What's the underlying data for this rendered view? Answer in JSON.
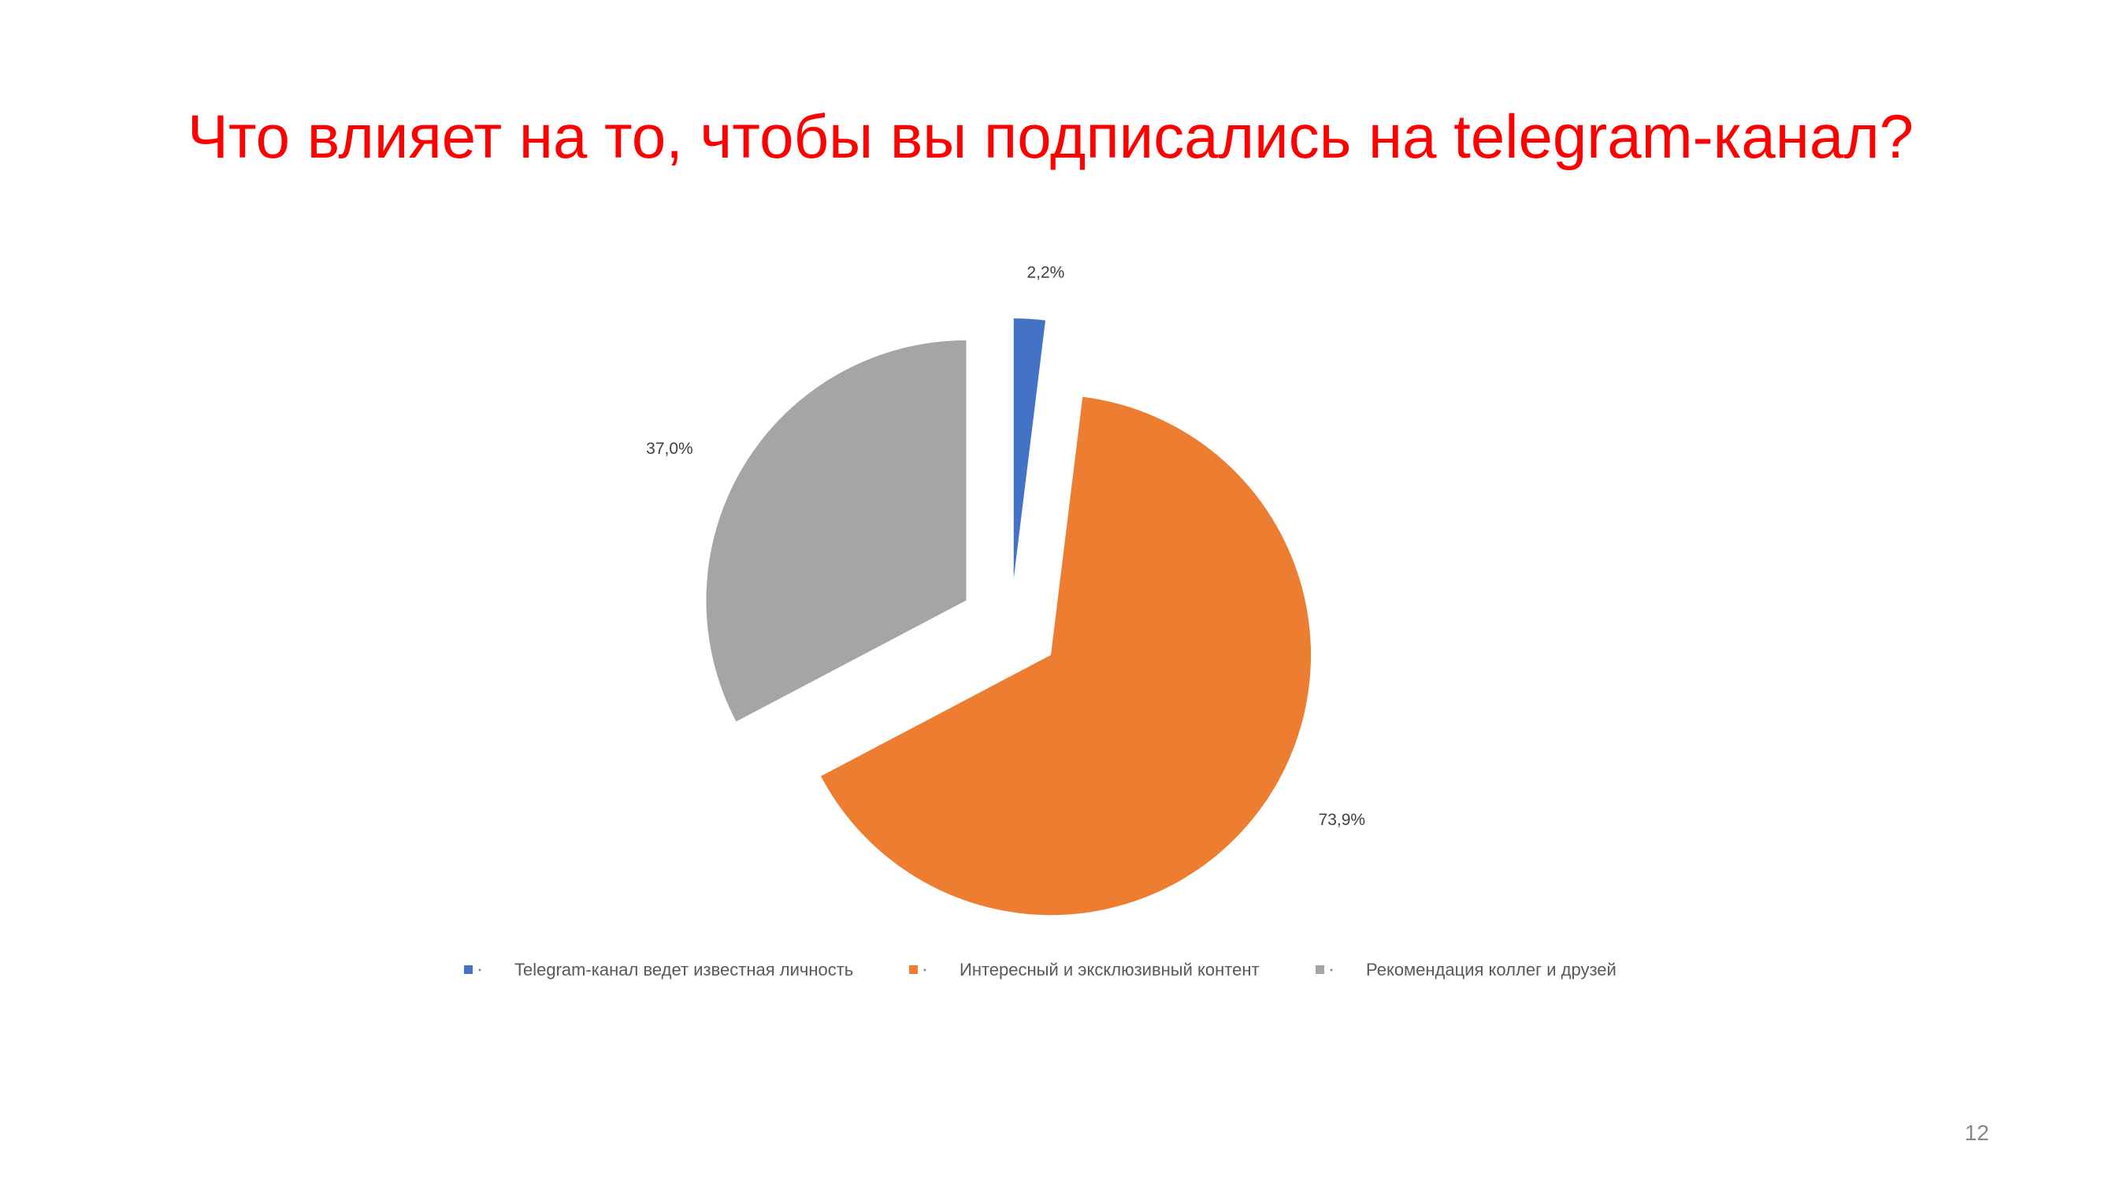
{
  "slide": {
    "title": "Что влияет на то, чтобы вы подписались на telegram-канал?",
    "page_number": "12"
  },
  "chart_data": {
    "type": "pie",
    "title": "",
    "exploded": true,
    "legend_position": "bottom",
    "slices": [
      {
        "name": "Telegram-канал ведет известная личность",
        "value": 2.2,
        "label": "2,2%",
        "color": "#4472c4"
      },
      {
        "name": "Интересный и эксклюзивный контент",
        "value": 73.9,
        "label": "73,9%",
        "color": "#ed7d31"
      },
      {
        "name": "Рекомендация коллег и друзей",
        "value": 37.0,
        "label": "37,0%",
        "color": "#a5a5a5"
      }
    ]
  }
}
